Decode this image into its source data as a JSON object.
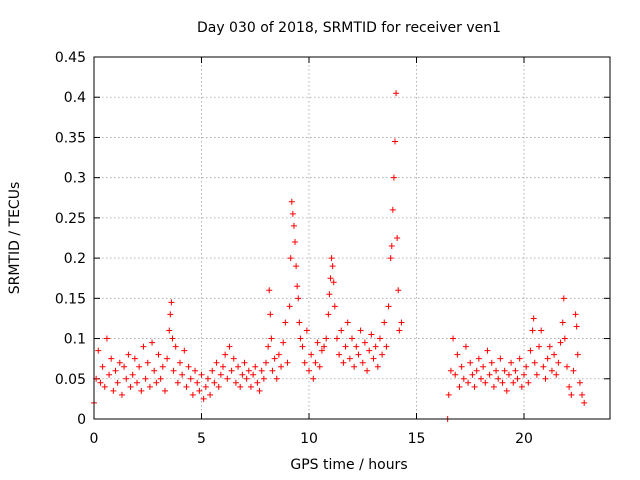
{
  "chart_data": {
    "type": "scatter",
    "title": "Day 030 of 2018, SRMTID for receiver ven1",
    "xlabel": "GPS time / hours",
    "ylabel": "SRMTID / TECUs",
    "xlim": [
      0,
      24
    ],
    "ylim": [
      0,
      0.45
    ],
    "xticks": [
      0,
      5,
      10,
      15,
      20
    ],
    "xtick_labels": [
      "0",
      "5",
      "10",
      "15",
      "20"
    ],
    "yticks": [
      0,
      0.05,
      0.1,
      0.15,
      0.2,
      0.25,
      0.3,
      0.35,
      0.4,
      0.45
    ],
    "ytick_labels": [
      "0",
      "0.05",
      "0.1",
      "0.15",
      "0.2",
      "0.25",
      "0.3",
      "0.35",
      "0.4",
      "0.45"
    ],
    "grid": true,
    "marker": "+",
    "color": "#ff0000",
    "series": [
      {
        "name": "SRMTID",
        "data": [
          [
            0.0,
            0.02
          ],
          [
            0.1,
            0.05
          ],
          [
            0.2,
            0.085
          ],
          [
            0.3,
            0.045
          ],
          [
            0.4,
            0.065
          ],
          [
            0.5,
            0.04
          ],
          [
            0.6,
            0.1
          ],
          [
            0.7,
            0.055
          ],
          [
            0.8,
            0.075
          ],
          [
            0.9,
            0.035
          ],
          [
            1.0,
            0.06
          ],
          [
            1.1,
            0.045
          ],
          [
            1.2,
            0.07
          ],
          [
            1.3,
            0.03
          ],
          [
            1.4,
            0.065
          ],
          [
            1.5,
            0.05
          ],
          [
            1.6,
            0.08
          ],
          [
            1.7,
            0.04
          ],
          [
            1.8,
            0.055
          ],
          [
            1.9,
            0.075
          ],
          [
            2.0,
            0.045
          ],
          [
            2.1,
            0.065
          ],
          [
            2.2,
            0.035
          ],
          [
            2.3,
            0.09
          ],
          [
            2.4,
            0.05
          ],
          [
            2.5,
            0.07
          ],
          [
            2.6,
            0.04
          ],
          [
            2.7,
            0.095
          ],
          [
            2.8,
            0.06
          ],
          [
            2.9,
            0.045
          ],
          [
            3.0,
            0.08
          ],
          [
            3.1,
            0.05
          ],
          [
            3.2,
            0.065
          ],
          [
            3.3,
            0.035
          ],
          [
            3.4,
            0.075
          ],
          [
            3.5,
            0.11
          ],
          [
            3.55,
            0.13
          ],
          [
            3.6,
            0.145
          ],
          [
            3.65,
            0.1
          ],
          [
            3.7,
            0.06
          ],
          [
            3.8,
            0.09
          ],
          [
            3.9,
            0.045
          ],
          [
            4.0,
            0.07
          ],
          [
            4.1,
            0.055
          ],
          [
            4.2,
            0.085
          ],
          [
            4.3,
            0.04
          ],
          [
            4.4,
            0.065
          ],
          [
            4.5,
            0.05
          ],
          [
            4.6,
            0.03
          ],
          [
            4.7,
            0.06
          ],
          [
            4.8,
            0.045
          ],
          [
            4.9,
            0.035
          ],
          [
            5.0,
            0.055
          ],
          [
            5.1,
            0.025
          ],
          [
            5.2,
            0.04
          ],
          [
            5.3,
            0.05
          ],
          [
            5.4,
            0.03
          ],
          [
            5.5,
            0.06
          ],
          [
            5.6,
            0.045
          ],
          [
            5.7,
            0.07
          ],
          [
            5.8,
            0.04
          ],
          [
            5.9,
            0.055
          ],
          [
            6.0,
            0.065
          ],
          [
            6.1,
            0.08
          ],
          [
            6.2,
            0.05
          ],
          [
            6.3,
            0.09
          ],
          [
            6.4,
            0.06
          ],
          [
            6.5,
            0.075
          ],
          [
            6.6,
            0.045
          ],
          [
            6.7,
            0.065
          ],
          [
            6.8,
            0.04
          ],
          [
            6.9,
            0.055
          ],
          [
            7.0,
            0.07
          ],
          [
            7.1,
            0.05
          ],
          [
            7.2,
            0.06
          ],
          [
            7.3,
            0.04
          ],
          [
            7.4,
            0.055
          ],
          [
            7.5,
            0.065
          ],
          [
            7.6,
            0.045
          ],
          [
            7.7,
            0.035
          ],
          [
            7.8,
            0.06
          ],
          [
            7.9,
            0.05
          ],
          [
            8.0,
            0.07
          ],
          [
            8.1,
            0.09
          ],
          [
            8.15,
            0.16
          ],
          [
            8.2,
            0.13
          ],
          [
            8.25,
            0.1
          ],
          [
            8.3,
            0.06
          ],
          [
            8.4,
            0.075
          ],
          [
            8.5,
            0.05
          ],
          [
            8.6,
            0.08
          ],
          [
            8.7,
            0.065
          ],
          [
            8.8,
            0.095
          ],
          [
            8.9,
            0.12
          ],
          [
            9.0,
            0.07
          ],
          [
            9.1,
            0.14
          ],
          [
            9.15,
            0.2
          ],
          [
            9.2,
            0.27
          ],
          [
            9.25,
            0.255
          ],
          [
            9.3,
            0.24
          ],
          [
            9.35,
            0.22
          ],
          [
            9.4,
            0.19
          ],
          [
            9.45,
            0.165
          ],
          [
            9.5,
            0.15
          ],
          [
            9.55,
            0.12
          ],
          [
            9.6,
            0.1
          ],
          [
            9.7,
            0.09
          ],
          [
            9.8,
            0.07
          ],
          [
            9.9,
            0.11
          ],
          [
            10.0,
            0.06
          ],
          [
            10.1,
            0.08
          ],
          [
            10.2,
            0.05
          ],
          [
            10.3,
            0.07
          ],
          [
            10.4,
            0.095
          ],
          [
            10.5,
            0.065
          ],
          [
            10.6,
            0.085
          ],
          [
            10.7,
            0.09
          ],
          [
            10.8,
            0.1
          ],
          [
            10.9,
            0.13
          ],
          [
            10.95,
            0.155
          ],
          [
            11.0,
            0.175
          ],
          [
            11.05,
            0.2
          ],
          [
            11.1,
            0.19
          ],
          [
            11.15,
            0.17
          ],
          [
            11.2,
            0.14
          ],
          [
            11.3,
            0.1
          ],
          [
            11.4,
            0.08
          ],
          [
            11.5,
            0.11
          ],
          [
            11.6,
            0.07
          ],
          [
            11.7,
            0.09
          ],
          [
            11.8,
            0.12
          ],
          [
            11.9,
            0.075
          ],
          [
            12.0,
            0.1
          ],
          [
            12.1,
            0.065
          ],
          [
            12.2,
            0.09
          ],
          [
            12.3,
            0.08
          ],
          [
            12.4,
            0.11
          ],
          [
            12.5,
            0.07
          ],
          [
            12.6,
            0.095
          ],
          [
            12.7,
            0.06
          ],
          [
            12.8,
            0.085
          ],
          [
            12.9,
            0.105
          ],
          [
            13.0,
            0.075
          ],
          [
            13.1,
            0.09
          ],
          [
            13.2,
            0.065
          ],
          [
            13.3,
            0.1
          ],
          [
            13.4,
            0.08
          ],
          [
            13.5,
            0.12
          ],
          [
            13.6,
            0.09
          ],
          [
            13.7,
            0.14
          ],
          [
            13.8,
            0.2
          ],
          [
            13.85,
            0.215
          ],
          [
            13.9,
            0.26
          ],
          [
            13.95,
            0.3
          ],
          [
            14.0,
            0.345
          ],
          [
            14.05,
            0.405
          ],
          [
            14.1,
            0.225
          ],
          [
            14.15,
            0.16
          ],
          [
            14.2,
            0.11
          ],
          [
            14.3,
            0.12
          ],
          [
            16.45,
            0.0
          ],
          [
            16.5,
            0.03
          ],
          [
            16.6,
            0.06
          ],
          [
            16.7,
            0.1
          ],
          [
            16.8,
            0.055
          ],
          [
            16.9,
            0.08
          ],
          [
            17.0,
            0.04
          ],
          [
            17.1,
            0.065
          ],
          [
            17.2,
            0.05
          ],
          [
            17.3,
            0.09
          ],
          [
            17.4,
            0.045
          ],
          [
            17.5,
            0.07
          ],
          [
            17.6,
            0.055
          ],
          [
            17.7,
            0.04
          ],
          [
            17.8,
            0.06
          ],
          [
            17.9,
            0.075
          ],
          [
            18.0,
            0.05
          ],
          [
            18.1,
            0.065
          ],
          [
            18.2,
            0.045
          ],
          [
            18.3,
            0.085
          ],
          [
            18.4,
            0.055
          ],
          [
            18.5,
            0.07
          ],
          [
            18.6,
            0.04
          ],
          [
            18.7,
            0.06
          ],
          [
            18.8,
            0.05
          ],
          [
            18.9,
            0.075
          ],
          [
            19.0,
            0.045
          ],
          [
            19.1,
            0.06
          ],
          [
            19.2,
            0.035
          ],
          [
            19.3,
            0.055
          ],
          [
            19.4,
            0.07
          ],
          [
            19.5,
            0.045
          ],
          [
            19.6,
            0.06
          ],
          [
            19.7,
            0.05
          ],
          [
            19.8,
            0.075
          ],
          [
            19.9,
            0.04
          ],
          [
            20.0,
            0.055
          ],
          [
            20.1,
            0.065
          ],
          [
            20.2,
            0.045
          ],
          [
            20.3,
            0.085
          ],
          [
            20.4,
            0.11
          ],
          [
            20.45,
            0.125
          ],
          [
            20.5,
            0.07
          ],
          [
            20.6,
            0.055
          ],
          [
            20.7,
            0.09
          ],
          [
            20.8,
            0.11
          ],
          [
            20.9,
            0.065
          ],
          [
            21.0,
            0.05
          ],
          [
            21.1,
            0.075
          ],
          [
            21.2,
            0.09
          ],
          [
            21.3,
            0.06
          ],
          [
            21.4,
            0.08
          ],
          [
            21.5,
            0.055
          ],
          [
            21.6,
            0.07
          ],
          [
            21.7,
            0.095
          ],
          [
            21.8,
            0.12
          ],
          [
            21.85,
            0.15
          ],
          [
            21.9,
            0.1
          ],
          [
            22.0,
            0.065
          ],
          [
            22.1,
            0.04
          ],
          [
            22.2,
            0.03
          ],
          [
            22.3,
            0.06
          ],
          [
            22.4,
            0.13
          ],
          [
            22.45,
            0.115
          ],
          [
            22.5,
            0.08
          ],
          [
            22.6,
            0.045
          ],
          [
            22.7,
            0.03
          ],
          [
            22.8,
            0.02
          ]
        ]
      }
    ]
  }
}
